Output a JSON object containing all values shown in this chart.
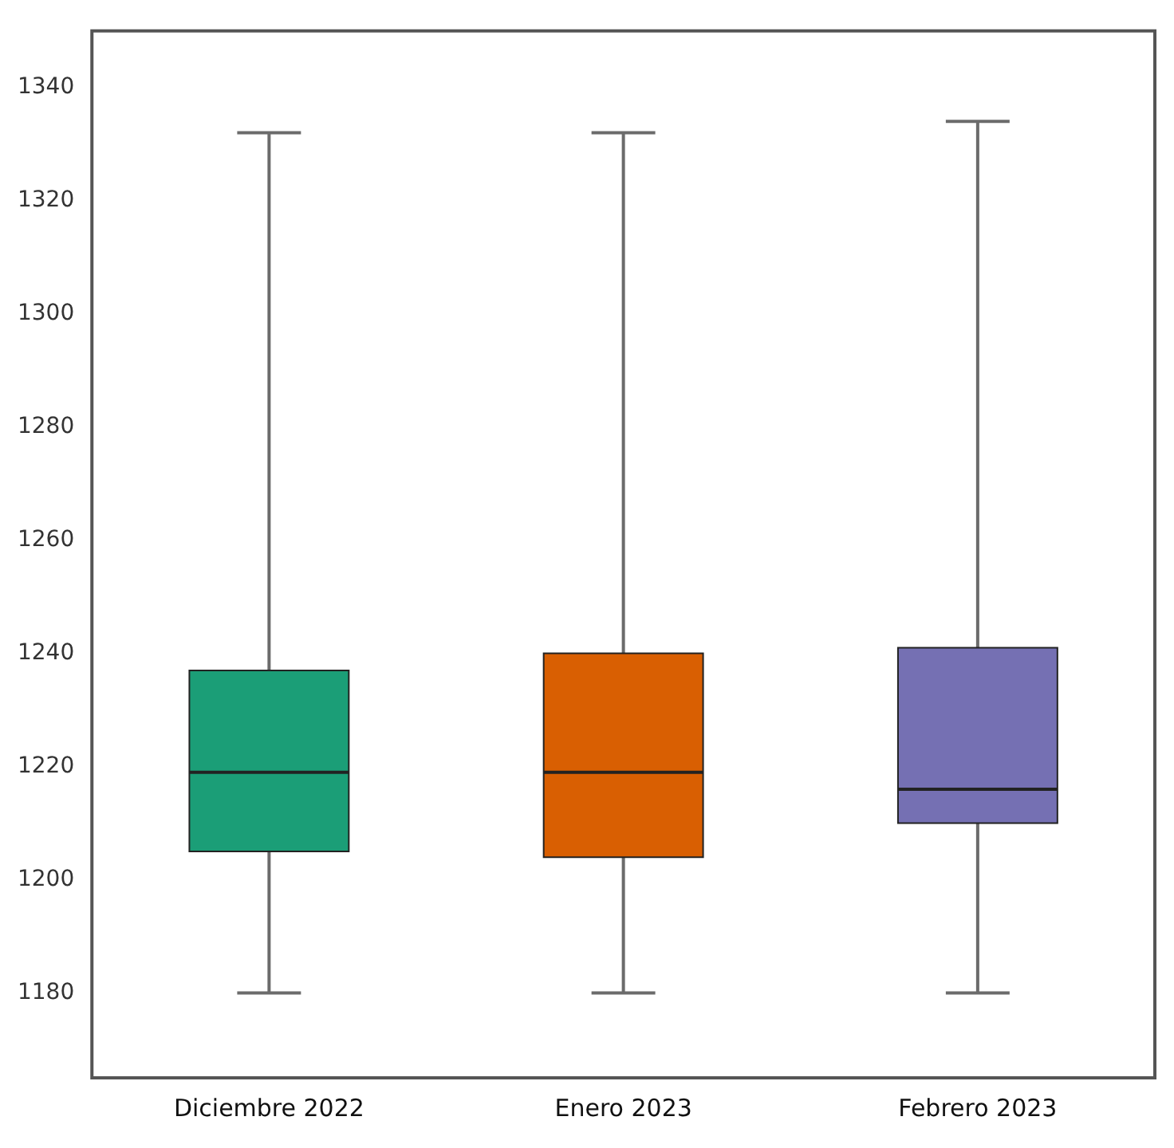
{
  "chart_data": {
    "type": "box",
    "categories": [
      "Diciembre 2022",
      "Enero 2023",
      "Febrero 2023"
    ],
    "boxes": [
      {
        "low": 1180,
        "q1": 1205,
        "median": 1219,
        "q3": 1237,
        "high": 1332
      },
      {
        "low": 1180,
        "q1": 1204,
        "median": 1219,
        "q3": 1240,
        "high": 1332
      },
      {
        "low": 1180,
        "q1": 1210,
        "median": 1216,
        "q3": 1241,
        "high": 1334
      }
    ],
    "colors": [
      "#1b9e77",
      "#d95f02",
      "#7570b3"
    ],
    "ylim": [
      1165,
      1350
    ],
    "yticks": [
      1180,
      1200,
      1220,
      1240,
      1260,
      1280,
      1300,
      1320,
      1340
    ]
  }
}
